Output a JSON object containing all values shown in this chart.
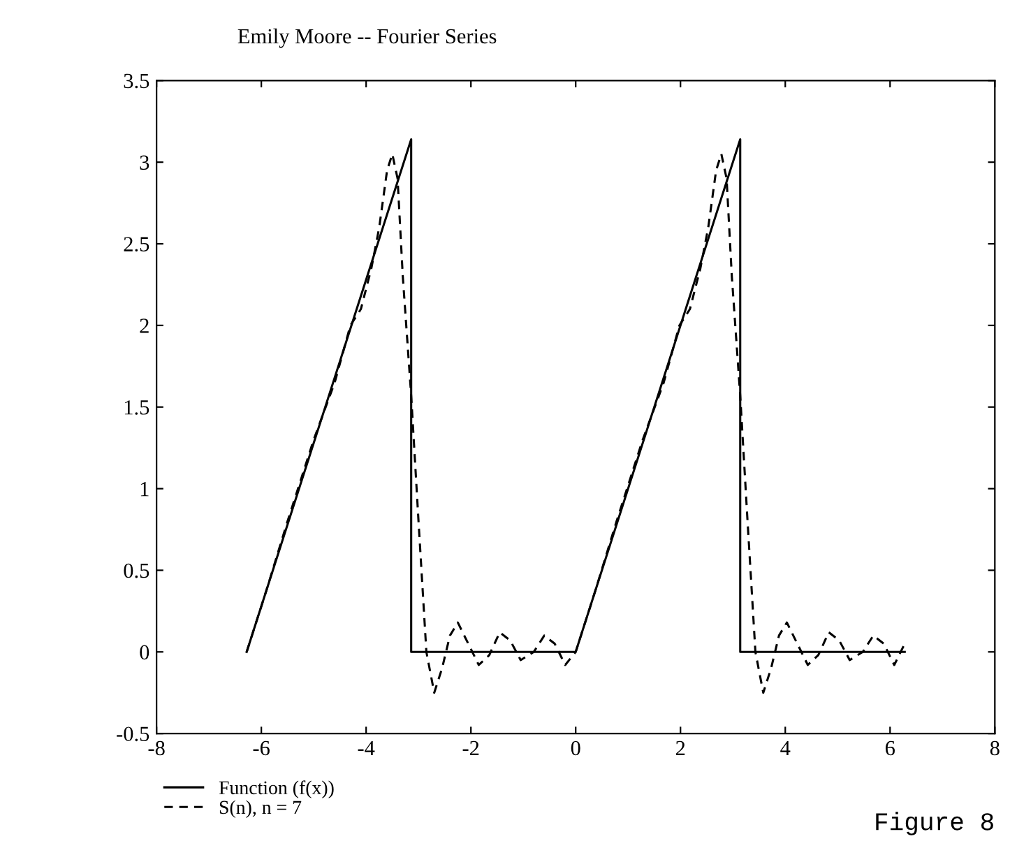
{
  "chart_data": {
    "type": "line",
    "title": "Emily Moore -- Fourier Series",
    "xlim": [
      -8,
      8
    ],
    "xticks": [
      -8,
      -6,
      -4,
      -2,
      0,
      2,
      4,
      6,
      8
    ],
    "ylim": [
      -0.5,
      3.5
    ],
    "yticks": [
      -0.5,
      0,
      0.5,
      1,
      1.5,
      2,
      2.5,
      3,
      3.5
    ],
    "grid": false,
    "legend": "bottom left",
    "annotations": [
      "Figure 8"
    ],
    "series": [
      {
        "name": "Function (f(x))",
        "color": "#000000",
        "line_style": "solid",
        "x": [
          -6.28,
          -3.14,
          -3.14,
          0,
          3.14,
          3.14,
          6.28
        ],
        "values": [
          0,
          3.14,
          0,
          0,
          3.14,
          0,
          0
        ]
      },
      {
        "name": "S(n), n = 7",
        "color": "#000000",
        "line_style": "dashed",
        "x": [
          -6.28,
          -5.9,
          -5.5,
          -5.0,
          -4.6,
          -4.3,
          -4.1,
          -3.9,
          -3.75,
          -3.6,
          -3.5,
          -3.4,
          -3.3,
          -3.14,
          -3.0,
          -2.85,
          -2.7,
          -2.55,
          -2.4,
          -2.25,
          -2.05,
          -1.85,
          -1.65,
          -1.45,
          -1.25,
          -1.05,
          -0.8,
          -0.6,
          -0.4,
          -0.2,
          0,
          0.38,
          0.78,
          1.28,
          1.68,
          1.98,
          2.18,
          2.38,
          2.53,
          2.68,
          2.78,
          2.88,
          2.98,
          3.14,
          3.28,
          3.43,
          3.58,
          3.73,
          3.88,
          4.03,
          4.23,
          4.43,
          4.63,
          4.83,
          5.03,
          5.23,
          5.48,
          5.68,
          5.88,
          6.08,
          6.28
        ],
        "values": [
          0,
          0.38,
          0.8,
          1.3,
          1.65,
          2.0,
          2.1,
          2.35,
          2.6,
          2.95,
          3.05,
          2.9,
          2.3,
          1.57,
          0.8,
          0,
          -0.25,
          -0.1,
          0.1,
          0.18,
          0.05,
          -0.08,
          -0.02,
          0.12,
          0.07,
          -0.05,
          0,
          0.1,
          0.05,
          -0.08,
          0,
          0.38,
          0.8,
          1.3,
          1.65,
          2.0,
          2.1,
          2.35,
          2.6,
          2.95,
          3.05,
          2.9,
          2.3,
          1.57,
          0.8,
          0,
          -0.25,
          -0.1,
          0.1,
          0.18,
          0.05,
          -0.08,
          -0.02,
          0.12,
          0.07,
          -0.05,
          0,
          0.1,
          0.05,
          -0.08,
          0.05
        ]
      }
    ]
  }
}
